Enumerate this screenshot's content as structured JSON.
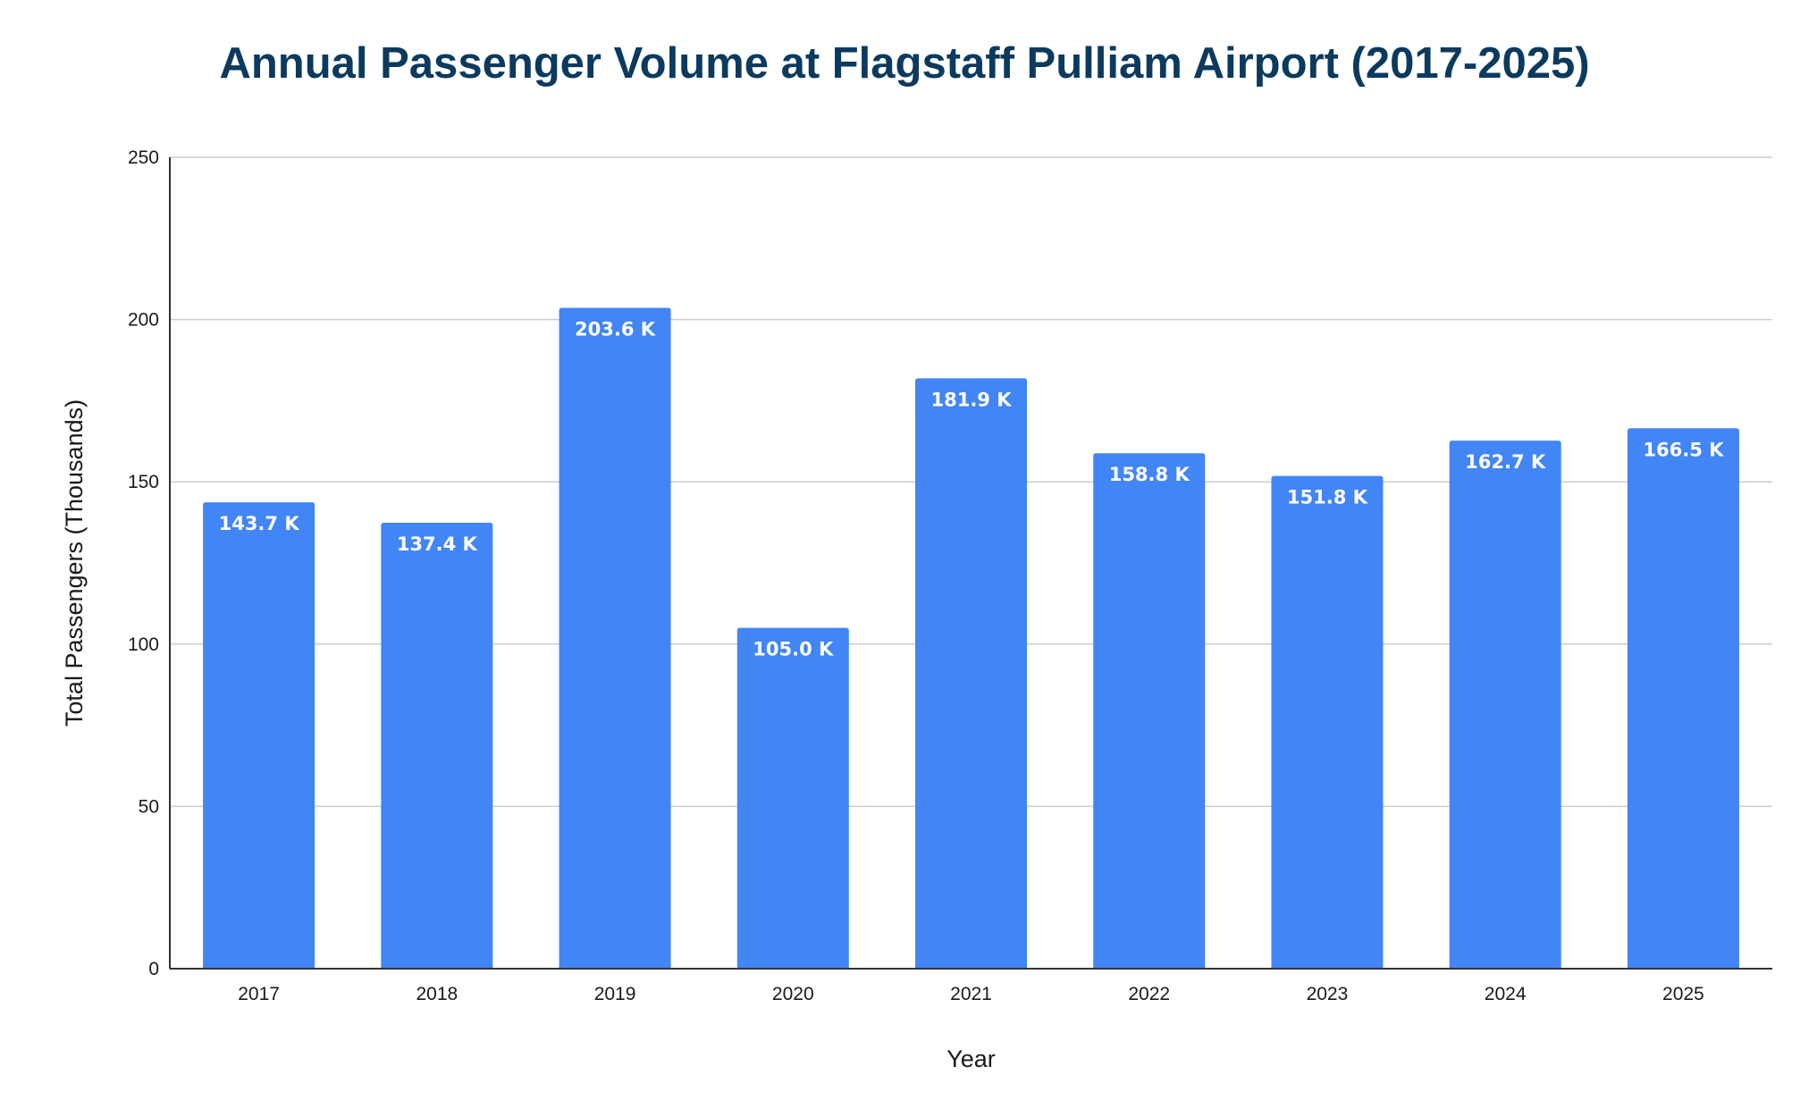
{
  "chart_data": {
    "type": "bar",
    "title": "Annual Passenger Volume at Flagstaff Pulliam Airport (2017-2025)",
    "xlabel": "Year",
    "ylabel": "Total Passengers (Thousands)",
    "categories": [
      "2017",
      "2018",
      "2019",
      "2020",
      "2021",
      "2022",
      "2023",
      "2024",
      "2025"
    ],
    "values": [
      143.7,
      137.4,
      203.6,
      105.0,
      181.9,
      158.8,
      151.8,
      162.7,
      166.5
    ],
    "data_labels": [
      "143.7 K",
      "137.4 K",
      "203.6 K",
      "105.0 K",
      "181.9 K",
      "158.8 K",
      "151.8 K",
      "162.7 K",
      "166.5 K"
    ],
    "ylim": [
      0,
      250
    ],
    "yticks": [
      "0",
      "50",
      "100",
      "150",
      "200",
      "250"
    ],
    "grid": true,
    "legend": "none",
    "colors": {
      "bar": "#4285f4",
      "title": "#0b3a5e",
      "grid": "#cccccc",
      "axis": "#333333"
    }
  }
}
